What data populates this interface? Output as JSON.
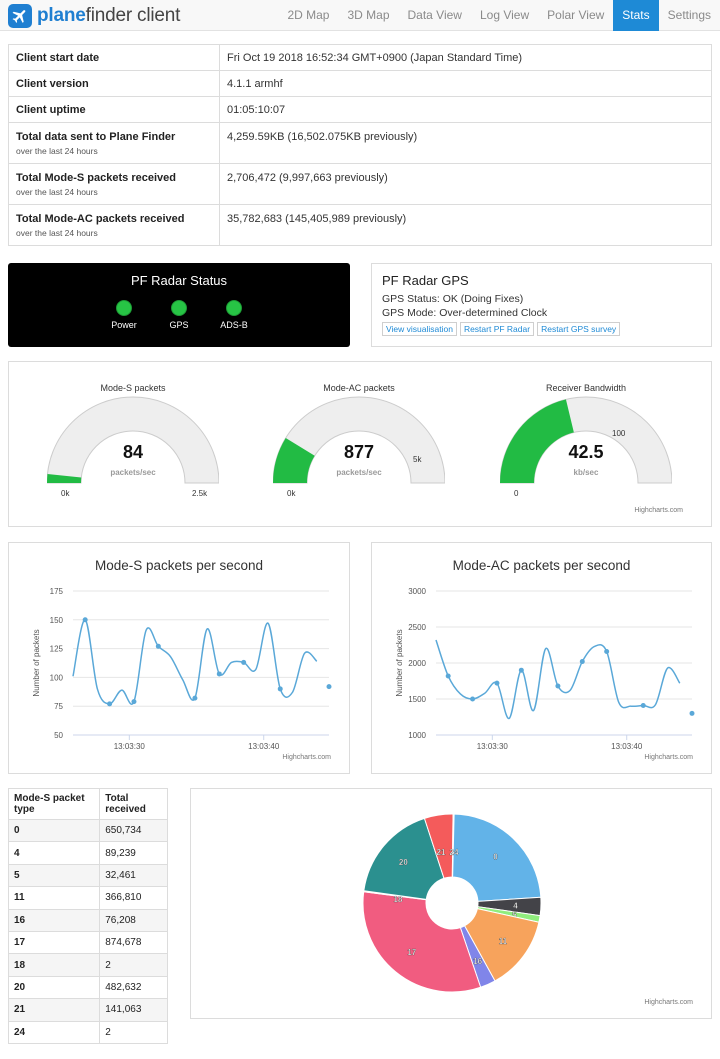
{
  "brand": {
    "bold": "plane",
    "rest": "finder",
    "suffix": " client"
  },
  "nav": [
    "2D Map",
    "3D Map",
    "Data View",
    "Log View",
    "Polar View",
    "Stats",
    "Settings"
  ],
  "nav_active": "Stats",
  "info": [
    {
      "label": "Client start date",
      "sub": "",
      "value": "Fri Oct 19 2018 16:52:34 GMT+0900 (Japan Standard Time)"
    },
    {
      "label": "Client version",
      "sub": "",
      "value": "4.1.1 armhf"
    },
    {
      "label": "Client uptime",
      "sub": "",
      "value": "01:05:10:07"
    },
    {
      "label": "Total data sent to Plane Finder",
      "sub": "over the last 24 hours",
      "value": "4,259.59KB (16,502.075KB previously)"
    },
    {
      "label": "Total Mode-S packets received",
      "sub": "over the last 24 hours",
      "value": "2,706,472 (9,997,663 previously)"
    },
    {
      "label": "Total Mode-AC packets received",
      "sub": "over the last 24 hours",
      "value": "35,782,683 (145,405,989 previously)"
    }
  ],
  "radar": {
    "title": "PF Radar Status",
    "lights": [
      {
        "label": "Power",
        "color": "#27c445"
      },
      {
        "label": "GPS",
        "color": "#27c445"
      },
      {
        "label": "ADS-B",
        "color": "#27c445"
      }
    ]
  },
  "gps": {
    "title": "PF Radar GPS",
    "status": "GPS Status: OK (Doing Fixes)",
    "mode": "GPS Mode: Over-determined Clock",
    "buttons": [
      "View visualisation",
      "Restart PF Radar",
      "Restart GPS survey"
    ]
  },
  "gauges": [
    {
      "title": "Mode-S packets",
      "value": "84",
      "value_num": 84,
      "min": 0,
      "max": 2500,
      "min_label": "0k",
      "max_label": "2.5k",
      "unit": "packets/sec"
    },
    {
      "title": "Mode-AC packets",
      "value": "877",
      "value_num": 877,
      "min": 0,
      "max": 5000,
      "min_label": "0k",
      "max_label": "5k",
      "unit": "packets/sec"
    },
    {
      "title": "Receiver Bandwidth",
      "value": "42.5",
      "value_num": 42.5,
      "min": 0,
      "max": 100,
      "min_label": "0",
      "max_label": "100",
      "unit": "kb/sec"
    }
  ],
  "credit": "Highcharts.com",
  "chart_data": [
    {
      "type": "line",
      "title": "Mode-S packets per second",
      "ylabel": "Number of packets",
      "xlabel": "",
      "ylim": [
        50,
        175
      ],
      "yticks": [
        50,
        75,
        100,
        125,
        150,
        175
      ],
      "xticks": [
        "13:03:30",
        "13:03:40"
      ],
      "series": [
        {
          "values": [
            101,
            150,
            90,
            77,
            89,
            79,
            141,
            127,
            118,
            98,
            82,
            142,
            103,
            113,
            113,
            107,
            147,
            90,
            87,
            121,
            114,
            92
          ]
        }
      ]
    },
    {
      "type": "line",
      "title": "Mode-AC packets per second",
      "ylabel": "Number of packets",
      "xlabel": "",
      "ylim": [
        1000,
        3000
      ],
      "yticks": [
        1000,
        1500,
        2000,
        2500,
        3000
      ],
      "xticks": [
        "13:03:30",
        "13:03:40"
      ],
      "series": [
        {
          "values": [
            2320,
            1820,
            1570,
            1500,
            1580,
            1720,
            1230,
            1900,
            1340,
            2200,
            1680,
            1620,
            2020,
            2230,
            2160,
            1450,
            1400,
            1410,
            1420,
            1930,
            1720,
            1300
          ]
        }
      ]
    },
    {
      "type": "pie",
      "slices": [
        {
          "label": "0",
          "value": 650734,
          "color": "#62b3e8"
        },
        {
          "label": "4",
          "value": 89239,
          "color": "#434348"
        },
        {
          "label": "5",
          "value": 32461,
          "color": "#90ed7d"
        },
        {
          "label": "11",
          "value": 366810,
          "color": "#f7a35c"
        },
        {
          "label": "16",
          "value": 76208,
          "color": "#8085e9"
        },
        {
          "label": "17",
          "value": 874678,
          "color": "#f15c80"
        },
        {
          "label": "18",
          "value": 2,
          "color": "#e4d354"
        },
        {
          "label": "20",
          "value": 482632,
          "color": "#2b908f"
        },
        {
          "label": "21",
          "value": 141063,
          "color": "#f45b5b"
        },
        {
          "label": "24",
          "value": 2,
          "color": "#91e8e1"
        }
      ]
    }
  ],
  "packet_table": {
    "headers": [
      "Mode-S packet type",
      "Total received"
    ],
    "rows": [
      [
        "0",
        "650,734"
      ],
      [
        "4",
        "89,239"
      ],
      [
        "5",
        "32,461"
      ],
      [
        "11",
        "366,810"
      ],
      [
        "16",
        "76,208"
      ],
      [
        "17",
        "874,678"
      ],
      [
        "18",
        "2"
      ],
      [
        "20",
        "482,632"
      ],
      [
        "21",
        "141,063"
      ],
      [
        "24",
        "2"
      ]
    ]
  }
}
